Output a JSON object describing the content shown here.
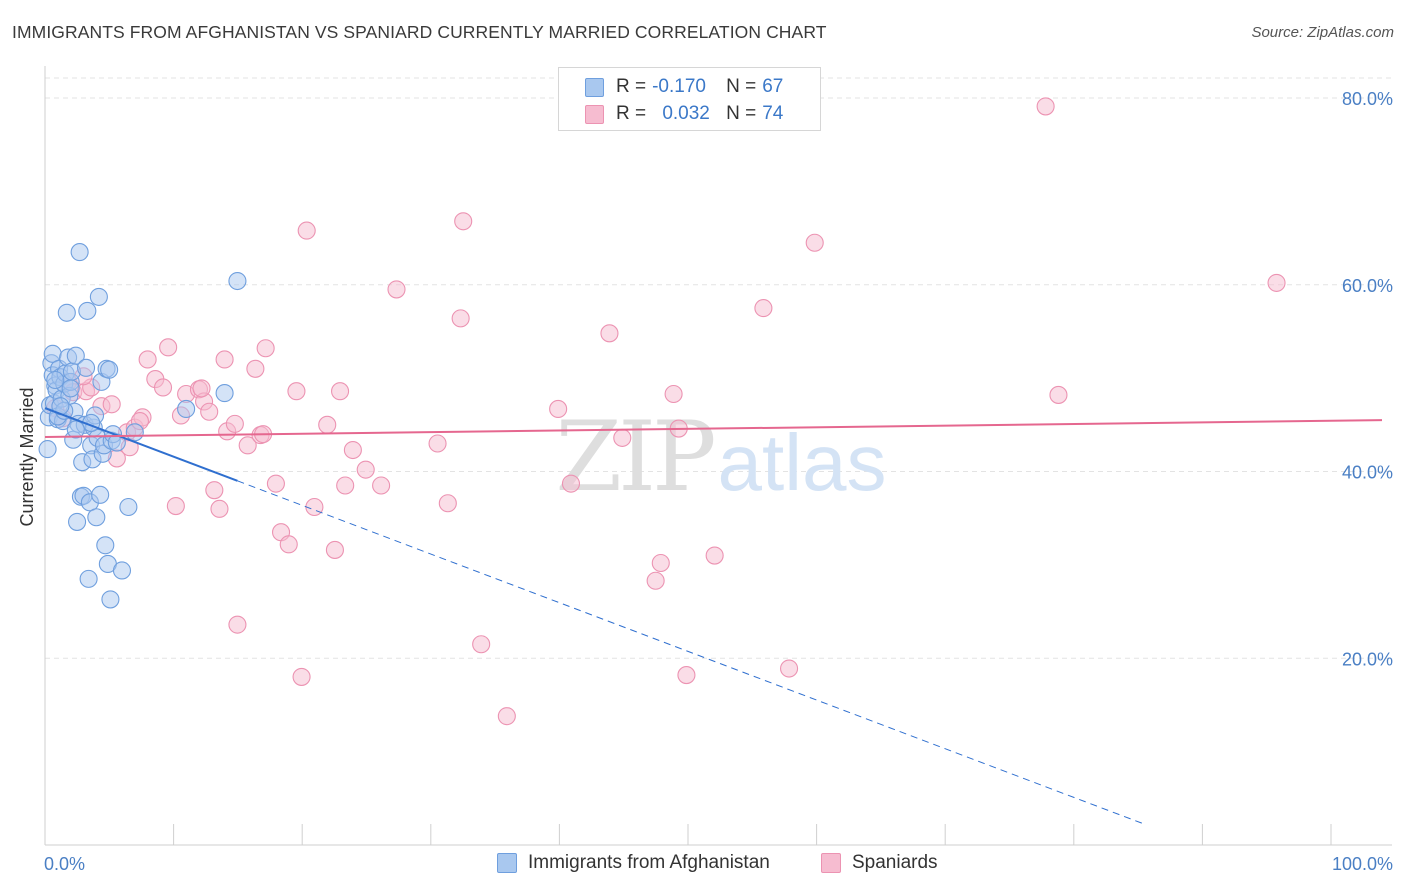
{
  "title": "IMMIGRANTS FROM AFGHANISTAN VS SPANIARD CURRENTLY MARRIED CORRELATION CHART",
  "source": "Source: ZipAtlas.com",
  "colors": {
    "blue_fill": "#a9c8ef",
    "blue_stroke": "#6f9fde",
    "blue_line": "#2f6fcf",
    "pink_fill": "#f6bcd0",
    "pink_stroke": "#ec93b2",
    "pink_line": "#e5678f",
    "grid": "#e3e3e3",
    "tick_text": "#4a7fc4"
  },
  "legend": {
    "rows": [
      {
        "r_label": "R =",
        "r_value": "-0.170",
        "n_label": "N =",
        "n_value": "67"
      },
      {
        "r_label": "R =",
        "r_value": "0.032",
        "n_label": "N =",
        "n_value": "74"
      }
    ]
  },
  "chart_data": {
    "type": "scatter",
    "xlabel": "",
    "ylabel": "Currently Married",
    "xlim": [
      0,
      105
    ],
    "ylim": [
      0,
      83
    ],
    "x_tick_labels": [
      "0.0%",
      "100.0%"
    ],
    "y_ticks": [
      20,
      40,
      60,
      80
    ],
    "y_tick_labels": [
      "20.0%",
      "40.0%",
      "60.0%",
      "80.0%"
    ],
    "grid": true,
    "legend_position": "top-center",
    "watermark": {
      "part1": "ZIP",
      "part2": "atlas"
    },
    "series": [
      {
        "name": "Immigrants from Afghanistan",
        "color": "blue",
        "points": [
          [
            0.2,
            42.4
          ],
          [
            0.3,
            45.8
          ],
          [
            0.4,
            47.1
          ],
          [
            0.5,
            51.6
          ],
          [
            0.6,
            50.3
          ],
          [
            0.6,
            52.6
          ],
          [
            0.7,
            47.3
          ],
          [
            0.8,
            49.2
          ],
          [
            0.9,
            48.7
          ],
          [
            1.0,
            45.6
          ],
          [
            1.1,
            51.0
          ],
          [
            1.2,
            50.1
          ],
          [
            1.3,
            47.8
          ],
          [
            1.4,
            45.4
          ],
          [
            1.5,
            49.4
          ],
          [
            1.6,
            50.5
          ],
          [
            1.7,
            57.0
          ],
          [
            1.8,
            52.2
          ],
          [
            1.9,
            48.1
          ],
          [
            2.0,
            49.6
          ],
          [
            2.1,
            50.7
          ],
          [
            2.2,
            43.4
          ],
          [
            2.3,
            46.4
          ],
          [
            2.4,
            52.4
          ],
          [
            2.5,
            34.6
          ],
          [
            2.6,
            45.1
          ],
          [
            2.7,
            63.5
          ],
          [
            2.8,
            37.3
          ],
          [
            2.9,
            41.0
          ],
          [
            3.0,
            37.4
          ],
          [
            3.1,
            45.0
          ],
          [
            3.2,
            51.1
          ],
          [
            3.3,
            57.2
          ],
          [
            3.4,
            28.5
          ],
          [
            3.5,
            36.7
          ],
          [
            3.6,
            42.8
          ],
          [
            3.7,
            41.3
          ],
          [
            3.8,
            44.7
          ],
          [
            3.9,
            46.0
          ],
          [
            4.0,
            35.1
          ],
          [
            4.1,
            43.6
          ],
          [
            4.2,
            58.7
          ],
          [
            4.3,
            37.5
          ],
          [
            4.4,
            49.6
          ],
          [
            4.5,
            41.9
          ],
          [
            4.6,
            42.8
          ],
          [
            4.7,
            32.1
          ],
          [
            4.8,
            51.0
          ],
          [
            4.9,
            30.1
          ],
          [
            5.0,
            50.9
          ],
          [
            5.1,
            26.3
          ],
          [
            5.2,
            43.3
          ],
          [
            5.3,
            44.0
          ],
          [
            5.6,
            43.1
          ],
          [
            6.0,
            29.4
          ],
          [
            6.5,
            36.2
          ],
          [
            7.0,
            44.2
          ],
          [
            11.0,
            46.7
          ],
          [
            14.0,
            48.4
          ],
          [
            15.0,
            60.4
          ],
          [
            1.0,
            45.9
          ],
          [
            1.5,
            46.5
          ],
          [
            0.8,
            49.8
          ],
          [
            2.0,
            48.9
          ],
          [
            3.6,
            45.2
          ],
          [
            1.2,
            47.0
          ],
          [
            2.4,
            44.5
          ]
        ],
        "trend": {
          "x0": 0,
          "y0": 46.8,
          "x1": 15,
          "y1": 39.0,
          "dashed_to_x": 85.7
        }
      },
      {
        "name": "Spaniards",
        "color": "pink",
        "points": [
          [
            0.8,
            46.8
          ],
          [
            1.4,
            45.7
          ],
          [
            1.8,
            49.6
          ],
          [
            2.2,
            48.5
          ],
          [
            3.2,
            48.6
          ],
          [
            3.6,
            49.0
          ],
          [
            4.4,
            47.0
          ],
          [
            5.2,
            47.2
          ],
          [
            5.6,
            41.4
          ],
          [
            6.4,
            44.2
          ],
          [
            6.6,
            42.6
          ],
          [
            7.0,
            44.7
          ],
          [
            7.6,
            45.8
          ],
          [
            8.0,
            52.0
          ],
          [
            8.6,
            49.9
          ],
          [
            9.2,
            49.0
          ],
          [
            9.6,
            53.3
          ],
          [
            10.2,
            36.3
          ],
          [
            10.6,
            46.0
          ],
          [
            11.0,
            48.3
          ],
          [
            12.0,
            48.8
          ],
          [
            12.4,
            47.5
          ],
          [
            12.8,
            46.4
          ],
          [
            13.2,
            38.0
          ],
          [
            13.6,
            36.0
          ],
          [
            14.0,
            52.0
          ],
          [
            14.2,
            44.3
          ],
          [
            14.8,
            45.1
          ],
          [
            15.0,
            23.6
          ],
          [
            15.8,
            42.8
          ],
          [
            16.4,
            51.0
          ],
          [
            16.8,
            43.9
          ],
          [
            17.2,
            53.2
          ],
          [
            18.0,
            38.7
          ],
          [
            18.4,
            33.5
          ],
          [
            19.0,
            32.2
          ],
          [
            19.6,
            48.6
          ],
          [
            20.0,
            18.0
          ],
          [
            20.4,
            65.8
          ],
          [
            21.0,
            36.2
          ],
          [
            22.0,
            45.0
          ],
          [
            22.6,
            31.6
          ],
          [
            23.0,
            48.6
          ],
          [
            23.4,
            38.5
          ],
          [
            24.0,
            42.3
          ],
          [
            25.0,
            40.2
          ],
          [
            26.2,
            38.5
          ],
          [
            27.4,
            59.5
          ],
          [
            30.6,
            43.0
          ],
          [
            31.4,
            36.6
          ],
          [
            32.4,
            56.4
          ],
          [
            32.6,
            66.8
          ],
          [
            34.0,
            21.5
          ],
          [
            36.0,
            13.8
          ],
          [
            40.0,
            46.7
          ],
          [
            41.0,
            38.7
          ],
          [
            44.0,
            54.8
          ],
          [
            45.0,
            43.6
          ],
          [
            47.6,
            28.3
          ],
          [
            48.0,
            30.2
          ],
          [
            49.0,
            48.3
          ],
          [
            49.4,
            44.6
          ],
          [
            50.0,
            18.2
          ],
          [
            52.2,
            31.0
          ],
          [
            56.0,
            57.5
          ],
          [
            58.0,
            18.9
          ],
          [
            60.0,
            64.5
          ],
          [
            79.0,
            48.2
          ],
          [
            78.0,
            79.1
          ],
          [
            96.0,
            60.2
          ],
          [
            17.0,
            44.0
          ],
          [
            7.4,
            45.4
          ],
          [
            12.2,
            48.9
          ],
          [
            3.0,
            50.2
          ]
        ],
        "trend": {
          "x0": 0,
          "y0": 43.7,
          "x1": 105,
          "y1": 45.5
        }
      }
    ]
  }
}
